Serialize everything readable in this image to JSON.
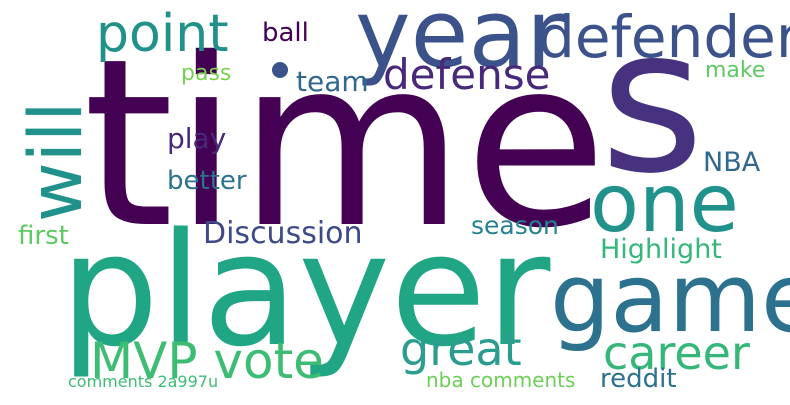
{
  "words": {
    "time": {
      "text": "time",
      "color": "#440154"
    },
    "s": {
      "text": "s",
      "color": "#46327e"
    },
    "player": {
      "text": "player",
      "color": "#21a685"
    },
    "year": {
      "text": "year",
      "color": "#3b528b"
    },
    "game": {
      "text": "game",
      "color": "#2c728e"
    },
    "one": {
      "text": "one",
      "color": "#21918c"
    },
    "defender": {
      "text": "defender",
      "color": "#3b528b"
    },
    "point": {
      "text": "point",
      "color": "#21918c"
    },
    "defense": {
      "text": "defense",
      "color": "#482878"
    },
    "will": {
      "text": "will",
      "color": "#21918c"
    },
    "mvp_vote": {
      "text": "MVP vote",
      "color": "#3dbc74"
    },
    "great": {
      "text": "great",
      "color": "#2a9d8f"
    },
    "career": {
      "text": "career",
      "color": "#35b779"
    },
    "team": {
      "text": "team",
      "color": "#31688e"
    },
    "ball": {
      "text": "ball",
      "color": "#440154"
    },
    "pass": {
      "text": "pass",
      "color": "#7ad151"
    },
    "make": {
      "text": "make",
      "color": "#5ec962"
    },
    "play": {
      "text": "play",
      "color": "#482878"
    },
    "nba": {
      "text": "NBA",
      "color": "#31688e"
    },
    "better": {
      "text": "better",
      "color": "#2c728e"
    },
    "discussion": {
      "text": "Discussion",
      "color": "#3e4989"
    },
    "season": {
      "text": "season",
      "color": "#26828e"
    },
    "first": {
      "text": "first",
      "color": "#5ec962"
    },
    "highlight": {
      "text": "Highlight",
      "color": "#35b779"
    },
    "nba_comments": {
      "text": "nba comments",
      "color": "#6ece58"
    },
    "reddit": {
      "text": "reddit",
      "color": "#2c728e"
    },
    "comments_2a997u": {
      "text": "comments 2a997u",
      "color": "#3dbc74"
    }
  },
  "dot_color": "#3b528b"
}
